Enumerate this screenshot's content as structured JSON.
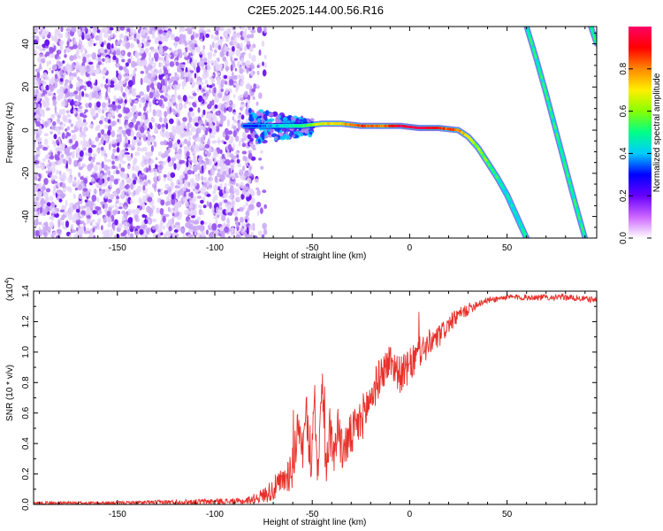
{
  "title": "C2E5.2025.144.00.56.R16",
  "colors": {
    "background": "#ffffff",
    "snr_line": "#e8302a",
    "scatter_base": "#7b2cf0",
    "axis": "#000000"
  },
  "colorbar": {
    "label": "Normalized spectral amplitude",
    "range": [
      0,
      1
    ],
    "ticks": [
      "0.0",
      "0.2",
      "0.4",
      "0.6",
      "0.8"
    ],
    "tick_values": [
      0.0,
      0.2,
      0.4,
      0.6,
      0.8
    ],
    "colormap": [
      "#ffffff",
      "#cc66ff",
      "#6600ff",
      "#0000ff",
      "#00ccff",
      "#00ff88",
      "#88ff00",
      "#ffee00",
      "#ff8800",
      "#ff0000",
      "#ff0066"
    ]
  },
  "chart_data": [
    {
      "type": "heatmap",
      "xlabel": "Height of straight line (km)",
      "ylabel": "Frequency (Hz)",
      "xlim": [
        -193,
        96
      ],
      "ylim": [
        -50,
        48
      ],
      "xticks": [
        -150,
        -100,
        -50,
        0,
        50
      ],
      "xtick_labels": [
        "-150",
        "-100",
        "-50",
        "0",
        "50"
      ],
      "yticks": [
        -40,
        -20,
        0,
        20,
        40
      ],
      "ytick_labels": [
        "-40",
        "-20",
        "0",
        "20",
        "40"
      ],
      "noise_region": {
        "x": [
          -193,
          -80
        ],
        "freq": [
          -50,
          48
        ]
      },
      "main_signal": {
        "heights": [
          -85,
          -75,
          -65,
          -55,
          -45,
          -35,
          -25,
          -15,
          -5,
          5,
          15,
          25,
          30,
          35,
          40,
          45,
          50,
          55,
          58,
          60
        ],
        "frequencies": [
          2,
          2,
          2,
          2,
          3,
          3,
          2,
          2,
          2,
          1,
          1,
          0,
          -3,
          -8,
          -15,
          -22,
          -30,
          -40,
          -46,
          -50
        ],
        "amplitudes": [
          0.25,
          0.35,
          0.45,
          0.5,
          0.7,
          0.75,
          0.85,
          0.8,
          0.95,
          1.0,
          0.9,
          0.8,
          0.7,
          0.6,
          0.55,
          0.5,
          0.45,
          0.45,
          0.45,
          0.45
        ]
      },
      "secondary_signal": {
        "heights": [
          60,
          65,
          70,
          75,
          80,
          85,
          90
        ],
        "frequencies": [
          48,
          33,
          17,
          0,
          -17,
          -34,
          -50
        ],
        "amplitude": 0.5
      },
      "secondary_signal_2": {
        "heights": [
          93,
          96
        ],
        "frequencies": [
          48,
          40
        ],
        "amplitude": 0.5
      }
    },
    {
      "type": "line",
      "xlabel": "Height of straight line (km)",
      "ylabel": "SNR (10 * v/v)",
      "y_multiplier": "(x10",
      "y_multiplier_exp": "4",
      "xlim": [
        -193,
        96
      ],
      "ylim": [
        0,
        1.4
      ],
      "xticks": [
        -150,
        -100,
        -50,
        0,
        50
      ],
      "xtick_labels": [
        "-150",
        "-100",
        "-50",
        "0",
        "50"
      ],
      "yticks": [
        0,
        0.2,
        0.4,
        0.6,
        0.8,
        1.0,
        1.2,
        1.4
      ],
      "ytick_labels": [
        "0.0",
        "0.2",
        "0.4",
        "0.6",
        "0.8",
        "1.0",
        "1.2",
        "1.4"
      ],
      "series": [
        {
          "x": [
            -193,
            -150,
            -100,
            -85,
            -80,
            -75,
            -70,
            -65,
            -60,
            -57,
            -55,
            -53,
            -51,
            -49,
            -47,
            -45,
            -43,
            -41,
            -39,
            -37,
            -35,
            -30,
            -25,
            -20,
            -15,
            -10,
            -5,
            0,
            5,
            10,
            15,
            20,
            25,
            30,
            35,
            40,
            45,
            50,
            60,
            70,
            80,
            90,
            96
          ],
          "y": [
            0.01,
            0.01,
            0.02,
            0.02,
            0.04,
            0.06,
            0.1,
            0.15,
            0.25,
            0.55,
            0.2,
            0.65,
            0.15,
            0.75,
            0.2,
            0.8,
            0.25,
            0.5,
            0.3,
            0.55,
            0.35,
            0.45,
            0.55,
            0.7,
            0.85,
            0.95,
            0.85,
            0.9,
            1.0,
            1.05,
            1.1,
            1.18,
            1.24,
            1.28,
            1.32,
            1.34,
            1.35,
            1.36,
            1.36,
            1.36,
            1.36,
            1.35,
            1.34
          ],
          "noise_amp": [
            0.01,
            0.01,
            0.02,
            0.02,
            0.03,
            0.05,
            0.08,
            0.1,
            0.15,
            0.15,
            0.15,
            0.15,
            0.15,
            0.15,
            0.15,
            0.15,
            0.15,
            0.15,
            0.15,
            0.15,
            0.15,
            0.15,
            0.15,
            0.15,
            0.12,
            0.12,
            0.12,
            0.12,
            0.1,
            0.1,
            0.08,
            0.06,
            0.05,
            0.04,
            0.03,
            0.02,
            0.02,
            0.02,
            0.02,
            0.02,
            0.02,
            0.02,
            0.02
          ]
        }
      ]
    }
  ]
}
